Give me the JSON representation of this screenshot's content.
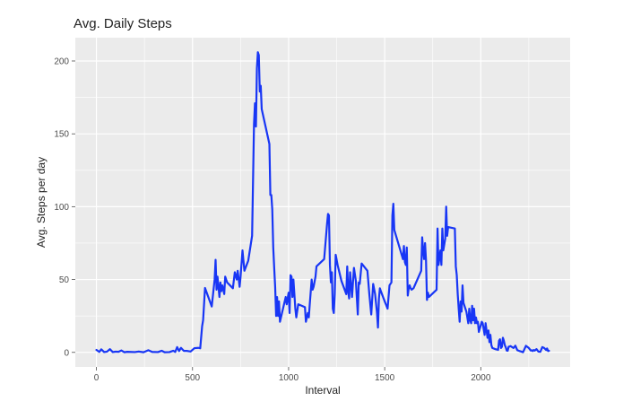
{
  "chart_data": {
    "type": "line",
    "title": "Avg. Daily Steps",
    "xlabel": "Interval",
    "ylabel": "Avg. Steps per day",
    "xlim": [
      -110,
      2465
    ],
    "ylim": [
      -10,
      216
    ],
    "x_ticks": [
      0,
      500,
      1000,
      1500,
      2000
    ],
    "y_ticks": [
      0,
      50,
      100,
      150,
      200
    ],
    "grid": true,
    "panel_background": "#ebebeb",
    "grid_color": "#ffffff",
    "series": [
      {
        "color": "#1836f5",
        "points": [
          [
            0,
            1.7
          ],
          [
            15,
            0.3
          ],
          [
            25,
            2.1
          ],
          [
            40,
            0.2
          ],
          [
            55,
            0.5
          ],
          [
            70,
            2.2
          ],
          [
            85,
            0.2
          ],
          [
            100,
            0.5
          ],
          [
            115,
            0.4
          ],
          [
            130,
            1.3
          ],
          [
            145,
            0.1
          ],
          [
            160,
            0.4
          ],
          [
            175,
            0.3
          ],
          [
            200,
            0.2
          ],
          [
            220,
            0.6
          ],
          [
            245,
            0.1
          ],
          [
            270,
            1.5
          ],
          [
            290,
            0.3
          ],
          [
            320,
            0.2
          ],
          [
            340,
            1.1
          ],
          [
            355,
            0.1
          ],
          [
            380,
            0.2
          ],
          [
            400,
            1.1
          ],
          [
            410,
            0.3
          ],
          [
            420,
            3.6
          ],
          [
            430,
            0.9
          ],
          [
            440,
            3.1
          ],
          [
            455,
            1.0
          ],
          [
            470,
            1.0
          ],
          [
            490,
            0.6
          ],
          [
            510,
            2.9
          ],
          [
            530,
            3.1
          ],
          [
            540,
            2.8
          ],
          [
            550,
            18.0
          ],
          [
            555,
            22.0
          ],
          [
            565,
            44.2
          ],
          [
            600,
            31.5
          ],
          [
            615,
            50.0
          ],
          [
            620,
            63.5
          ],
          [
            625,
            43.0
          ],
          [
            630,
            52.0
          ],
          [
            640,
            38.0
          ],
          [
            645,
            48.0
          ],
          [
            650,
            42.0
          ],
          [
            655,
            46.0
          ],
          [
            665,
            40.0
          ],
          [
            670,
            52.0
          ],
          [
            680,
            48.0
          ],
          [
            710,
            44.0
          ],
          [
            720,
            55.0
          ],
          [
            730,
            50.0
          ],
          [
            735,
            56.0
          ],
          [
            745,
            45.0
          ],
          [
            750,
            52.0
          ],
          [
            760,
            70.0
          ],
          [
            770,
            56.0
          ],
          [
            790,
            63.0
          ],
          [
            810,
            80.0
          ],
          [
            820,
            157.0
          ],
          [
            825,
            171.0
          ],
          [
            830,
            155.0
          ],
          [
            835,
            195.0
          ],
          [
            840,
            206.0
          ],
          [
            845,
            204.0
          ],
          [
            850,
            179.0
          ],
          [
            855,
            183.0
          ],
          [
            860,
            167.0
          ],
          [
            900,
            143.0
          ],
          [
            905,
            108.0
          ],
          [
            910,
            108.0
          ],
          [
            915,
            98.0
          ],
          [
            920,
            72.0
          ],
          [
            925,
            58.0
          ],
          [
            930,
            45.0
          ],
          [
            935,
            25.0
          ],
          [
            940,
            38.0
          ],
          [
            945,
            25.0
          ],
          [
            950,
            35.0
          ],
          [
            955,
            21.0
          ],
          [
            985,
            38.0
          ],
          [
            990,
            33.0
          ],
          [
            1000,
            41.0
          ],
          [
            1005,
            27.0
          ],
          [
            1010,
            53.0
          ],
          [
            1015,
            52.0
          ],
          [
            1020,
            38.0
          ],
          [
            1025,
            50.0
          ],
          [
            1030,
            40.0
          ],
          [
            1035,
            30.0
          ],
          [
            1040,
            24.0
          ],
          [
            1050,
            33.0
          ],
          [
            1085,
            31.0
          ],
          [
            1090,
            21.0
          ],
          [
            1100,
            27.0
          ],
          [
            1105,
            24.0
          ],
          [
            1110,
            33.0
          ],
          [
            1120,
            50.0
          ],
          [
            1125,
            43.0
          ],
          [
            1130,
            45.0
          ],
          [
            1140,
            52.0
          ],
          [
            1145,
            59.0
          ],
          [
            1185,
            64.0
          ],
          [
            1200,
            88.0
          ],
          [
            1205,
            95.0
          ],
          [
            1210,
            94.0
          ],
          [
            1215,
            60.0
          ],
          [
            1220,
            48.0
          ],
          [
            1225,
            55.0
          ],
          [
            1230,
            30.0
          ],
          [
            1235,
            27.0
          ],
          [
            1240,
            40.0
          ],
          [
            1245,
            67.0
          ],
          [
            1255,
            60.0
          ],
          [
            1275,
            49.0
          ],
          [
            1300,
            40.0
          ],
          [
            1305,
            59.0
          ],
          [
            1310,
            42.0
          ],
          [
            1315,
            37.0
          ],
          [
            1320,
            55.0
          ],
          [
            1330,
            38.0
          ],
          [
            1340,
            58.0
          ],
          [
            1350,
            49.0
          ],
          [
            1360,
            26.0
          ],
          [
            1365,
            48.0
          ],
          [
            1370,
            47.0
          ],
          [
            1380,
            61.0
          ],
          [
            1410,
            56.0
          ],
          [
            1420,
            40.0
          ],
          [
            1430,
            26.0
          ],
          [
            1440,
            47.0
          ],
          [
            1450,
            40.0
          ],
          [
            1460,
            27.0
          ],
          [
            1465,
            17.0
          ],
          [
            1470,
            37.0
          ],
          [
            1475,
            44.0
          ],
          [
            1480,
            42.0
          ],
          [
            1500,
            35.0
          ],
          [
            1515,
            30.0
          ],
          [
            1525,
            46.0
          ],
          [
            1535,
            48.0
          ],
          [
            1540,
            94.0
          ],
          [
            1545,
            102.0
          ],
          [
            1550,
            84.0
          ],
          [
            1595,
            64.0
          ],
          [
            1600,
            73.0
          ],
          [
            1605,
            62.0
          ],
          [
            1610,
            60.0
          ],
          [
            1615,
            72.0
          ],
          [
            1620,
            39.0
          ],
          [
            1625,
            44.0
          ],
          [
            1630,
            46.0
          ],
          [
            1635,
            44.0
          ],
          [
            1640,
            43.0
          ],
          [
            1650,
            44.0
          ],
          [
            1690,
            56.0
          ],
          [
            1695,
            79.0
          ],
          [
            1700,
            70.0
          ],
          [
            1705,
            64.0
          ],
          [
            1710,
            75.0
          ],
          [
            1715,
            63.0
          ],
          [
            1720,
            36.0
          ],
          [
            1725,
            41.0
          ],
          [
            1730,
            38.0
          ],
          [
            1770,
            43.0
          ],
          [
            1775,
            85.0
          ],
          [
            1780,
            60.0
          ],
          [
            1790,
            70.0
          ],
          [
            1795,
            60.0
          ],
          [
            1800,
            85.0
          ],
          [
            1805,
            70.0
          ],
          [
            1815,
            78.0
          ],
          [
            1820,
            100.0
          ],
          [
            1825,
            80.0
          ],
          [
            1830,
            86.0
          ],
          [
            1865,
            85.0
          ],
          [
            1870,
            59.0
          ],
          [
            1875,
            53.0
          ],
          [
            1880,
            40.0
          ],
          [
            1885,
            30.0
          ],
          [
            1890,
            21.0
          ],
          [
            1895,
            35.0
          ],
          [
            1900,
            28.0
          ],
          [
            1905,
            46.0
          ],
          [
            1910,
            34.0
          ],
          [
            1925,
            28.0
          ],
          [
            1930,
            24.0
          ],
          [
            1935,
            20.0
          ],
          [
            1940,
            30.0
          ],
          [
            1945,
            22.0
          ],
          [
            1950,
            20.0
          ],
          [
            1955,
            32.0
          ],
          [
            1960,
            22.0
          ],
          [
            1965,
            30.0
          ],
          [
            1970,
            20.0
          ],
          [
            1975,
            24.0
          ],
          [
            1980,
            20.0
          ],
          [
            1985,
            21.0
          ],
          [
            1990,
            14.0
          ],
          [
            2005,
            21.0
          ],
          [
            2010,
            20.0
          ],
          [
            2015,
            16.0
          ],
          [
            2020,
            12.0
          ],
          [
            2025,
            20.0
          ],
          [
            2030,
            15.0
          ],
          [
            2035,
            10.0
          ],
          [
            2040,
            15.0
          ],
          [
            2045,
            7.0
          ],
          [
            2050,
            12.0
          ],
          [
            2055,
            5.0
          ],
          [
            2060,
            3.0
          ],
          [
            2070,
            2.5
          ],
          [
            2080,
            2.0
          ],
          [
            2085,
            2.0
          ],
          [
            2090,
            1.7
          ],
          [
            2095,
            8.0
          ],
          [
            2100,
            9.0
          ],
          [
            2105,
            3.0
          ],
          [
            2110,
            3.8
          ],
          [
            2115,
            10.0
          ],
          [
            2120,
            8.0
          ],
          [
            2125,
            5.0
          ],
          [
            2130,
            3.5
          ],
          [
            2135,
            1.2
          ],
          [
            2140,
            1.1
          ],
          [
            2145,
            3.9
          ],
          [
            2150,
            4.0
          ],
          [
            2155,
            4.3
          ],
          [
            2170,
            3.0
          ],
          [
            2180,
            4.6
          ],
          [
            2190,
            1.5
          ],
          [
            2200,
            1.0
          ],
          [
            2210,
            0.6
          ],
          [
            2220,
            0.1
          ],
          [
            2235,
            4.5
          ],
          [
            2250,
            3.0
          ],
          [
            2260,
            1.3
          ],
          [
            2265,
            1.4
          ],
          [
            2270,
            0.9
          ],
          [
            2275,
            1.6
          ],
          [
            2280,
            1.2
          ],
          [
            2290,
            2.2
          ],
          [
            2300,
            0.5
          ],
          [
            2310,
            0.4
          ],
          [
            2320,
            3.6
          ],
          [
            2330,
            3.0
          ],
          [
            2340,
            1.6
          ],
          [
            2345,
            2.7
          ],
          [
            2350,
            0.9
          ],
          [
            2355,
            1.1
          ]
        ]
      }
    ]
  }
}
